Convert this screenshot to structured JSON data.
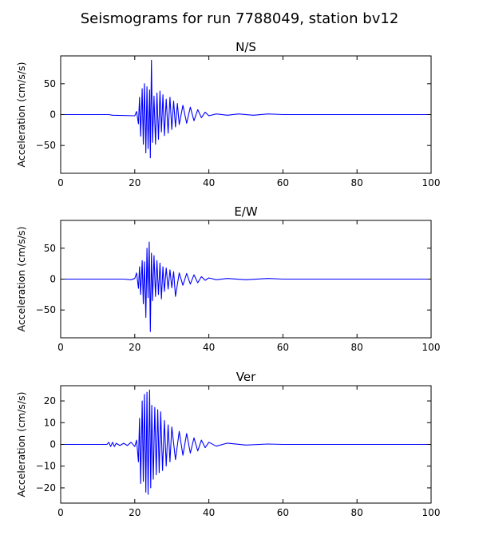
{
  "chart_data": {
    "type": "line",
    "title": "Seismograms for run 7788049, station bv12",
    "panels": [
      {
        "title": "N/S",
        "ylabel": "Acceleration (cm/s/s)",
        "xlim": [
          0,
          100
        ],
        "ylim": [
          -95,
          95
        ],
        "xticks": [
          0,
          20,
          40,
          60,
          80,
          100
        ],
        "yticks": [
          50,
          0,
          -50
        ],
        "series": [
          {
            "color": "#0000ff",
            "x": [
              0,
              13,
              14,
              20,
              20.5,
              21,
              21.3,
              21.6,
              22,
              22.3,
              22.6,
              23,
              23.3,
              23.6,
              24,
              24.2,
              24.5,
              24.8,
              25.2,
              25.6,
              26,
              26.4,
              26.8,
              27.2,
              27.6,
              28,
              28.5,
              29,
              29.5,
              30,
              30.5,
              31,
              31.5,
              32,
              33,
              34,
              35,
              36,
              37,
              38,
              39,
              40,
              42,
              45,
              48,
              52,
              56,
              60,
              100
            ],
            "y": [
              0,
              0,
              -1,
              -2,
              5,
              -15,
              28,
              -35,
              42,
              -48,
              50,
              -62,
              45,
              -55,
              40,
              -70,
              88,
              -45,
              30,
              -48,
              35,
              -40,
              38,
              -28,
              32,
              -34,
              25,
              -30,
              28,
              -24,
              22,
              -20,
              18,
              -16,
              15,
              -14,
              12,
              -10,
              8,
              -5,
              4,
              -2,
              1,
              -1,
              1,
              -1,
              1,
              0,
              0
            ]
          }
        ]
      },
      {
        "title": "E/W",
        "ylabel": "Acceleration (cm/s/s)",
        "xlim": [
          0,
          100
        ],
        "ylim": [
          -95,
          95
        ],
        "xticks": [
          0,
          20,
          40,
          60,
          80,
          100
        ],
        "yticks": [
          50,
          0,
          -50
        ],
        "series": [
          {
            "color": "#0000ff",
            "x": [
              0,
              17,
              19,
              20,
              20.5,
              21,
              21.3,
              21.6,
              22,
              22.3,
              22.6,
              23,
              23.3,
              23.6,
              23.9,
              24.2,
              24.5,
              24.8,
              25.2,
              25.6,
              26,
              26.4,
              26.8,
              27.2,
              27.6,
              28,
              28.5,
              29,
              29.5,
              30,
              30.5,
              31,
              32,
              33,
              34,
              35,
              36,
              37,
              38,
              39,
              40,
              42,
              45,
              50,
              56,
              60,
              100
            ],
            "y": [
              0,
              0,
              -1,
              1,
              10,
              -15,
              20,
              -25,
              30,
              -40,
              28,
              -62,
              50,
              -30,
              60,
              -85,
              42,
              -35,
              38,
              -28,
              30,
              -25,
              26,
              -32,
              20,
              -20,
              18,
              -16,
              15,
              -14,
              12,
              -28,
              10,
              -10,
              9,
              -8,
              7,
              -6,
              4,
              -2,
              2,
              -1,
              1,
              -1,
              1,
              0,
              0
            ]
          }
        ]
      },
      {
        "title": "Ver",
        "ylabel": "Acceleration (cm/s/s)",
        "xlim": [
          0,
          100
        ],
        "ylim": [
          -27,
          27
        ],
        "xticks": [
          0,
          20,
          40,
          60,
          80,
          100
        ],
        "yticks": [
          20,
          10,
          0,
          -10,
          -20
        ],
        "series": [
          {
            "color": "#0000ff",
            "x": [
              0,
              12.5,
              13,
              13.5,
              14,
              14.5,
              15,
              16,
              17,
              18,
              19,
              20,
              20.5,
              21,
              21.3,
              21.6,
              22,
              22.3,
              22.6,
              23,
              23.3,
              23.6,
              24,
              24.3,
              24.6,
              25,
              25.4,
              25.8,
              26.2,
              26.6,
              27,
              27.5,
              28,
              28.5,
              29,
              29.5,
              30,
              31,
              32,
              33,
              34,
              35,
              36,
              37,
              38,
              39,
              40,
              42,
              45,
              50,
              56,
              60,
              100
            ],
            "y": [
              0,
              0,
              1,
              -1,
              1,
              -1,
              0.5,
              -0.5,
              0.5,
              -0.5,
              1,
              -1,
              2,
              -8,
              12,
              -18,
              20,
              -17,
              23,
              -22,
              24,
              -23,
              25,
              -20,
              18,
              -16,
              17,
              -14,
              16,
              -13,
              15,
              -12,
              11,
              -10,
              9,
              -8,
              8,
              -7,
              6,
              -5,
              5,
              -4,
              3,
              -3,
              2,
              -1.5,
              1,
              -0.8,
              0.6,
              -0.3,
              0.2,
              0,
              0
            ]
          }
        ]
      }
    ]
  }
}
